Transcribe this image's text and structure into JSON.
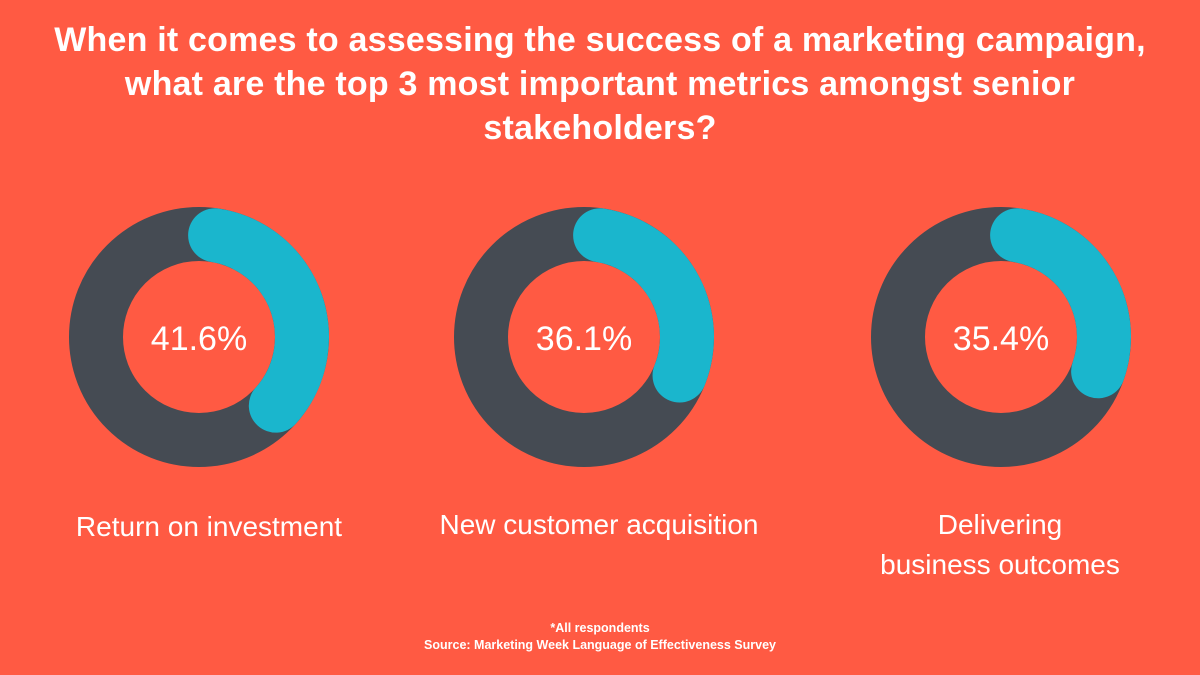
{
  "colors": {
    "background": "#FF5A43",
    "ring": "#454B53",
    "highlight": "#1AB6CD",
    "text": "#FFFFFF"
  },
  "chart_data": {
    "type": "donut",
    "title": "When it comes to assessing the success of a marketing campaign, what are the top 3 most important metrics amongst senior stakeholders?",
    "categories": [
      "Return on investment",
      "New customer acquisition",
      "Delivering business outcomes"
    ],
    "values": [
      41.6,
      36.1,
      35.4
    ],
    "value_labels": [
      "41.6%",
      "36.1%",
      "35.4%"
    ],
    "unit": "%",
    "max": 100
  },
  "footnote": {
    "note": "*All respondents",
    "source": "Source: Marketing Week Language of Effectiveness Survey"
  }
}
